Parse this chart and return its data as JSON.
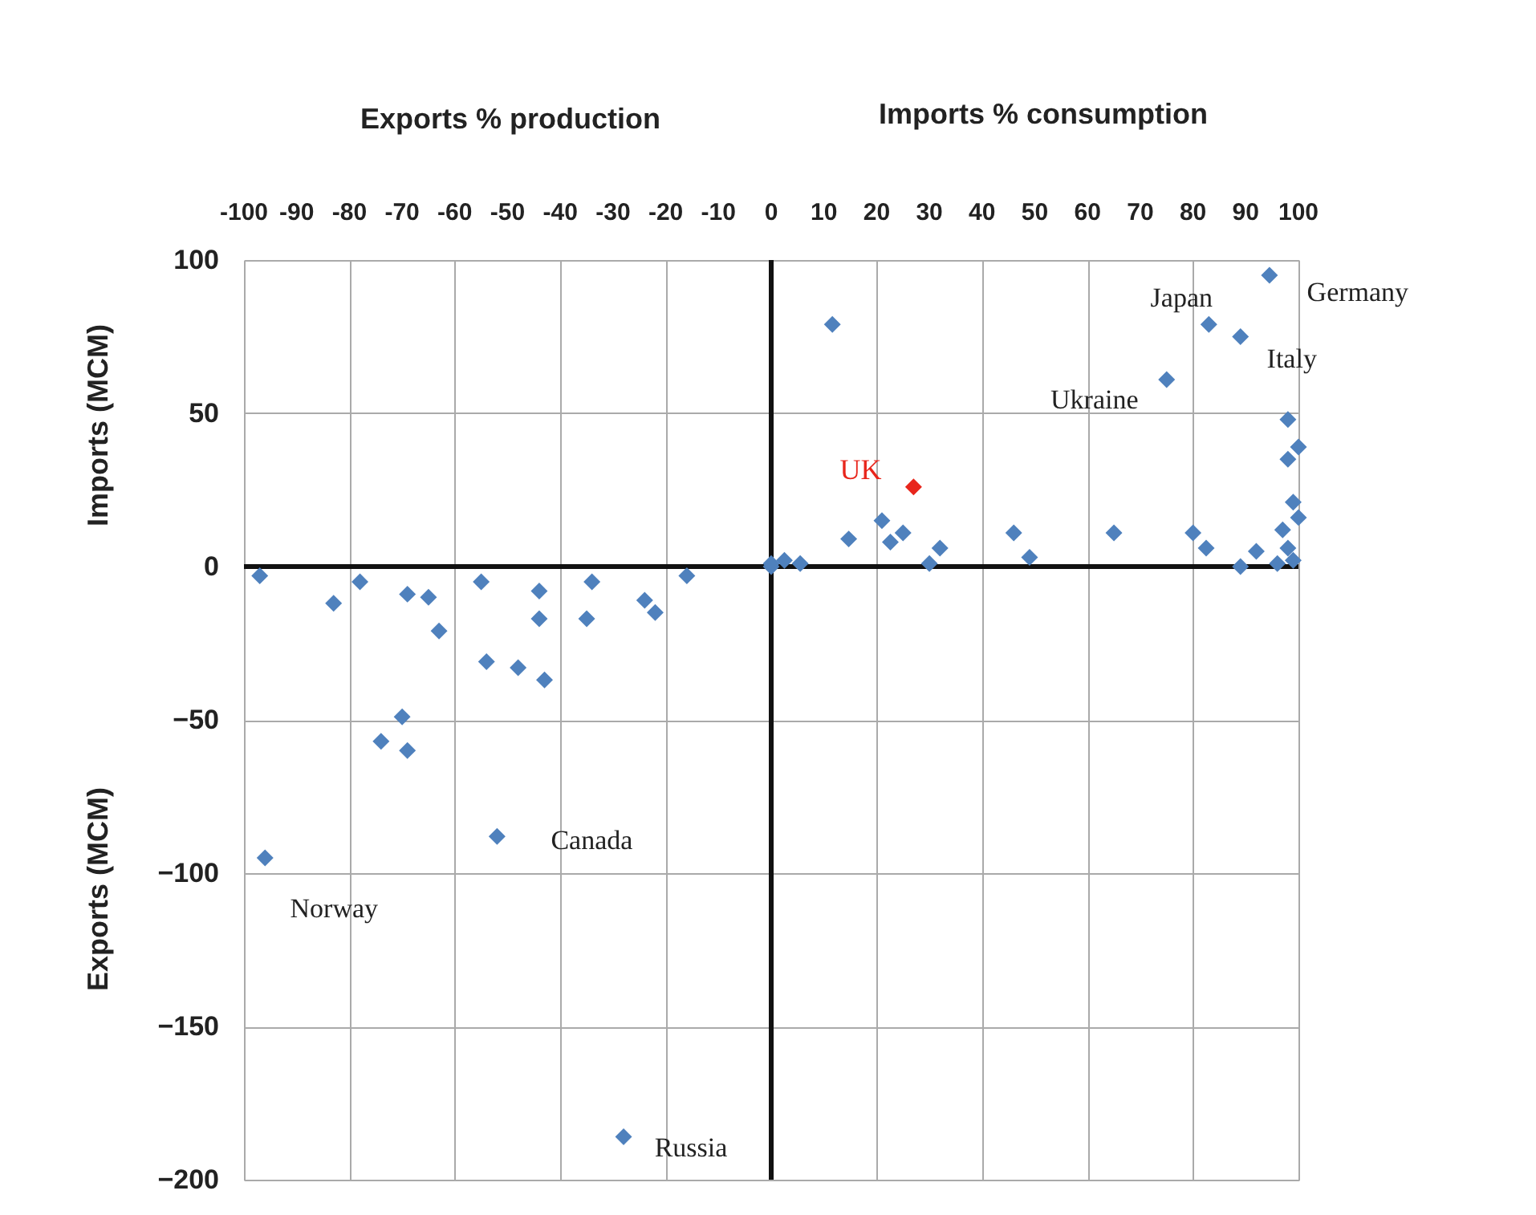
{
  "chart_data": {
    "type": "scatter",
    "xlabel": "Exports % production",
    "ylabel": "Imports (MCM)",
    "annotations": [
      "Imports % consumption",
      "Exports (MCM)",
      {
        "text": "Norway",
        "x": -96,
        "y": -95
      },
      {
        "text": "Canada",
        "x": -52,
        "y": -88
      },
      {
        "text": "Russia",
        "x": -28,
        "y": -186
      },
      {
        "text": "Ukraine",
        "x": 75,
        "y": 61
      },
      {
        "text": "Japan",
        "x": 83,
        "y": 79
      },
      {
        "text": "Italy",
        "x": 89,
        "y": 75
      },
      {
        "text": "Germany",
        "x": 94.5,
        "y": 95
      }
    ],
    "series": [
      {
        "color": "#4f81bd",
        "x": [
          -97,
          -83,
          -78,
          -69,
          -65,
          -63,
          -55,
          -54,
          -48,
          -44,
          -44,
          -43,
          -34,
          -35,
          -24,
          -22,
          -16,
          -70,
          -74,
          -69,
          -52,
          -96,
          -28,
          0,
          0,
          2.5,
          5.5,
          11.6,
          14.7,
          21,
          22.6,
          25,
          30,
          32,
          46,
          49,
          65,
          75,
          80,
          82.5,
          83,
          89,
          94.5,
          98,
          98,
          100,
          99,
          100,
          97,
          89,
          92,
          98,
          99,
          96
        ],
        "values": [
          -3,
          -12,
          -5,
          -9,
          -10,
          -21,
          -5,
          -31,
          -33,
          -8,
          -17,
          -37,
          -5,
          -17,
          -11,
          -15,
          -3,
          -49,
          -57,
          -60,
          -88,
          -95,
          -186,
          0,
          1,
          2,
          1,
          79,
          9,
          15,
          8,
          11,
          1,
          6,
          11,
          3,
          11,
          61,
          11,
          6,
          79,
          75,
          95,
          48,
          35,
          39,
          21,
          16,
          12,
          0,
          5,
          6,
          2,
          1
        ]
      },
      {
        "name": "UK",
        "color": "#e8261c",
        "x": [
          27
        ],
        "values": [
          26
        ]
      }
    ],
    "xlim": [
      -100,
      100
    ],
    "xticks": [
      -100,
      -90,
      -80,
      -70,
      -60,
      -50,
      -40,
      -30,
      -20,
      -10,
      0,
      10,
      20,
      30,
      40,
      50,
      60,
      70,
      80,
      90,
      100
    ],
    "ylim": [
      -200,
      100
    ],
    "yticks": [
      -200,
      -150,
      -100,
      -50,
      0,
      50,
      100
    ],
    "grid": true,
    "marker": "diamond"
  }
}
